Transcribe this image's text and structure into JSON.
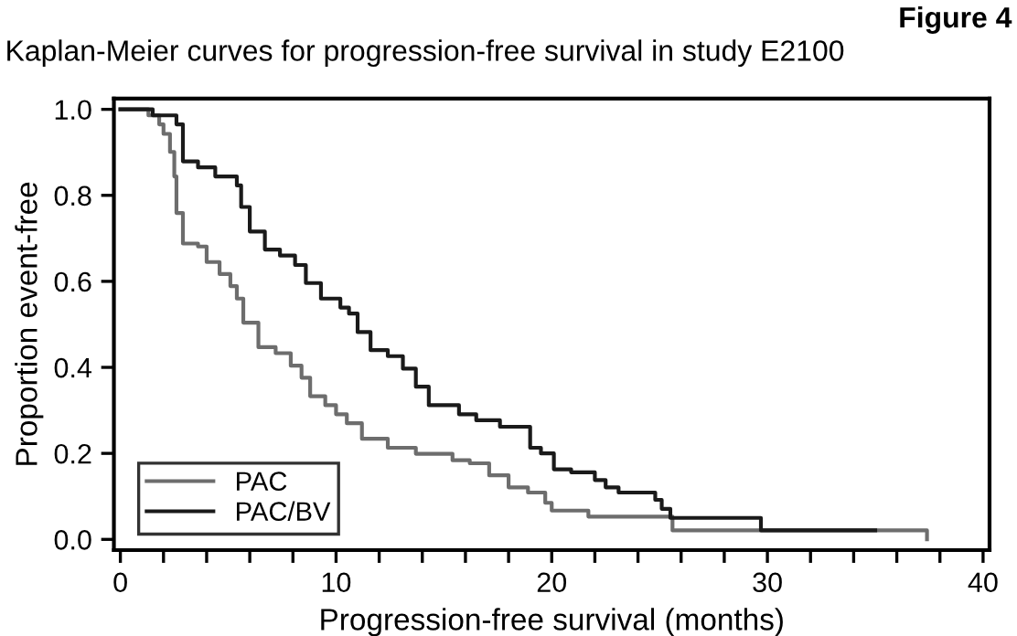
{
  "chart_data": {
    "type": "step",
    "title": "Kaplan-Meier curves for progression-free survival in study E2100",
    "annotations": [
      "Figure 4"
    ],
    "xlabel": "Progression-free survival (months)",
    "ylabel": "Proportion event-free",
    "xlim": [
      -0.3,
      40.3
    ],
    "ylim": [
      -0.025,
      1.025
    ],
    "xticks": [
      0,
      {
        "value": 2,
        "label": null
      },
      {
        "value": 4,
        "label": null
      },
      {
        "value": 6,
        "label": null
      },
      {
        "value": 8,
        "label": null
      },
      10,
      {
        "value": 12,
        "label": null
      },
      {
        "value": 14,
        "label": null
      },
      {
        "value": 16,
        "label": null
      },
      {
        "value": 18,
        "label": null
      },
      20,
      {
        "value": 22,
        "label": null
      },
      {
        "value": 24,
        "label": null
      },
      {
        "value": 26,
        "label": null
      },
      {
        "value": 28,
        "label": null
      },
      30,
      {
        "value": 32,
        "label": null
      },
      {
        "value": 34,
        "label": null
      },
      {
        "value": 36,
        "label": null
      },
      {
        "value": 38,
        "label": null
      },
      40
    ],
    "yticks": [
      {
        "value": 0,
        "label": "0.0"
      },
      {
        "value": 0.2,
        "label": "0.2"
      },
      {
        "value": 0.4,
        "label": "0.4"
      },
      {
        "value": 0.6,
        "label": "0.6"
      },
      {
        "value": 0.8,
        "label": "0.8"
      },
      {
        "value": 1,
        "label": "1.0"
      }
    ],
    "grid": false,
    "legend": "bottom left",
    "marker": "none",
    "line_style": "solid",
    "series": [
      {
        "name": "PAC",
        "color": "#6d6d6d",
        "x": [
          0,
          0.2,
          1.3,
          1.8,
          2.0,
          2.3,
          2.5,
          2.6,
          2.9,
          3.6,
          4.0,
          4.6,
          5.1,
          5.4,
          5.7,
          6.4,
          7.2,
          7.9,
          8.4,
          8.8,
          9.5,
          10.0,
          10.5,
          11.2,
          12.4,
          13.7,
          15.4,
          16.2,
          17.1,
          18.0,
          18.9,
          19.7,
          20.0,
          21.7,
          25.6,
          37.4
        ],
        "values": [
          1.0,
          1.0,
          0.986,
          0.965,
          0.943,
          0.901,
          0.844,
          0.759,
          0.688,
          0.681,
          0.645,
          0.617,
          0.589,
          0.56,
          0.504,
          0.447,
          0.433,
          0.404,
          0.376,
          0.333,
          0.312,
          0.291,
          0.27,
          0.234,
          0.213,
          0.199,
          0.184,
          0.177,
          0.149,
          0.121,
          0.109,
          0.085,
          0.067,
          0.053,
          0.021,
          0.0
        ]
      },
      {
        "name": "PAC/BV",
        "color": "#1a1a1a",
        "x": [
          0,
          0.8,
          1.5,
          2.6,
          2.9,
          3.6,
          4.4,
          5.4,
          5.6,
          6.0,
          6.7,
          7.4,
          8.1,
          8.6,
          9.3,
          10.2,
          10.6,
          11.0,
          11.6,
          12.4,
          13.1,
          13.7,
          14.3,
          15.7,
          16.5,
          17.6,
          19.0,
          19.5,
          20.1,
          20.9,
          22.0,
          22.5,
          23.1,
          24.8,
          25.1,
          25.5,
          29.7,
          35.0
        ],
        "values": [
          1.0,
          1.0,
          0.986,
          0.965,
          0.879,
          0.865,
          0.844,
          0.823,
          0.773,
          0.716,
          0.674,
          0.66,
          0.638,
          0.596,
          0.56,
          0.539,
          0.525,
          0.482,
          0.44,
          0.426,
          0.397,
          0.355,
          0.312,
          0.291,
          0.277,
          0.262,
          0.213,
          0.2,
          0.163,
          0.156,
          0.138,
          0.121,
          0.109,
          0.092,
          0.071,
          0.05,
          0.021,
          0.021
        ]
      }
    ]
  }
}
